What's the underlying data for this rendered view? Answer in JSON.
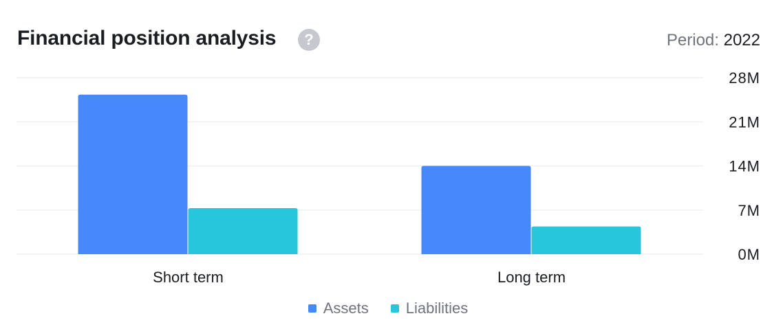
{
  "header": {
    "title": "Financial position analysis",
    "help_glyph": "?",
    "help_icon": "question-circle-icon",
    "period_label": "Period:",
    "period_value": "2022"
  },
  "colors": {
    "assets": "#4589fd",
    "liabilities": "#28c6db",
    "grid": "#eef0f4",
    "text": "#1a1d21",
    "muted": "#6f747c"
  },
  "chart_data": {
    "type": "bar",
    "title": "Financial position analysis",
    "categories": [
      "Short term",
      "Long term"
    ],
    "series": [
      {
        "name": "Assets",
        "values": [
          25.3,
          14.0
        ]
      },
      {
        "name": "Liabilities",
        "values": [
          7.3,
          4.4
        ]
      }
    ],
    "ylim": [
      0,
      28
    ],
    "y_ticks": [
      0,
      7,
      14,
      21,
      28
    ],
    "y_tick_labels": [
      "0M",
      "7M",
      "14M",
      "21M",
      "28M"
    ],
    "y_axis_side": "right",
    "grid": true,
    "legend": "bottom-center"
  }
}
